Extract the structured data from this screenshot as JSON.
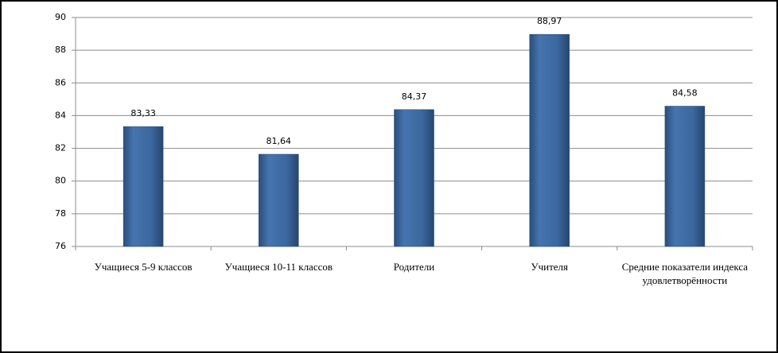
{
  "chart_data": {
    "type": "bar",
    "categories": [
      "Учащиеся  5-9 классов",
      "Учащиеся 10-11 классов",
      "Родители",
      "Учителя",
      "Средние показатели индекса удовлетворённости"
    ],
    "values": [
      83.33,
      81.64,
      84.37,
      88.97,
      84.58
    ],
    "value_labels": [
      "83,33",
      "81,64",
      "84,37",
      "88,97",
      "84,58"
    ],
    "color": "#3c679f",
    "ylim": [
      76,
      90
    ],
    "yticks": [
      76,
      78,
      80,
      82,
      84,
      86,
      88,
      90
    ],
    "grid": true
  }
}
